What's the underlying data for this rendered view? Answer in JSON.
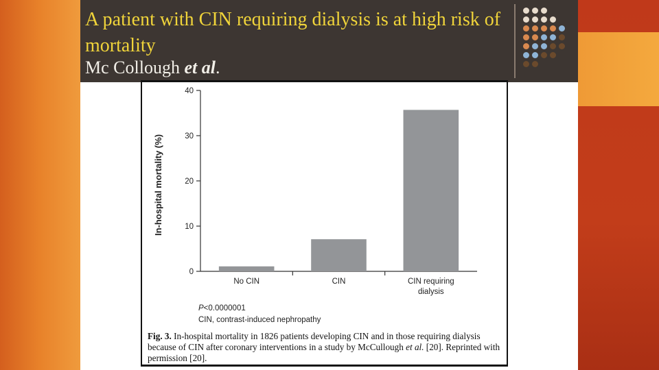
{
  "slide": {
    "title": "A patient  with CIN requiring dialysis is at high risk of mortality",
    "subtitle_author": "Mc Collough",
    "subtitle_etal": "et al",
    "subtitle_dot": "."
  },
  "figure": {
    "stat_note": "P<0.0000001",
    "abbrev_note": "CIN, contrast-induced nephropathy",
    "caption_label": "Fig. 3.",
    "caption_text_1": " In-hospital mortality in 1826 patients developing CIN and in those requiring dialysis because of CIN after coronary interventions in a study by McCullough ",
    "caption_etal": "et al.",
    "caption_text_2": " [20]. Reprinted with permission [20]."
  },
  "chart_data": {
    "type": "bar",
    "categories": [
      "No CIN",
      "CIN",
      "CIN requiring dialysis"
    ],
    "category_lines": [
      [
        "No CIN"
      ],
      [
        "CIN"
      ],
      [
        "CIN requiring",
        "dialysis"
      ]
    ],
    "values": [
      1.1,
      7.1,
      35.7
    ],
    "ylabel": "In-hospital mortality (%)",
    "xlabel": "",
    "ylim": [
      0,
      40
    ],
    "yticks": [
      0,
      10,
      20,
      30,
      40
    ],
    "bar_color": "#939598",
    "grid": false
  },
  "colors": {
    "title_yellow": "#f0d43a",
    "header_bg": "#3d3632",
    "dots": [
      "#e8dccd",
      "#e8dccd",
      "#e8dccd",
      "#d9894f",
      "#d9894f",
      "#d9894f",
      "#8fb4d6"
    ]
  }
}
